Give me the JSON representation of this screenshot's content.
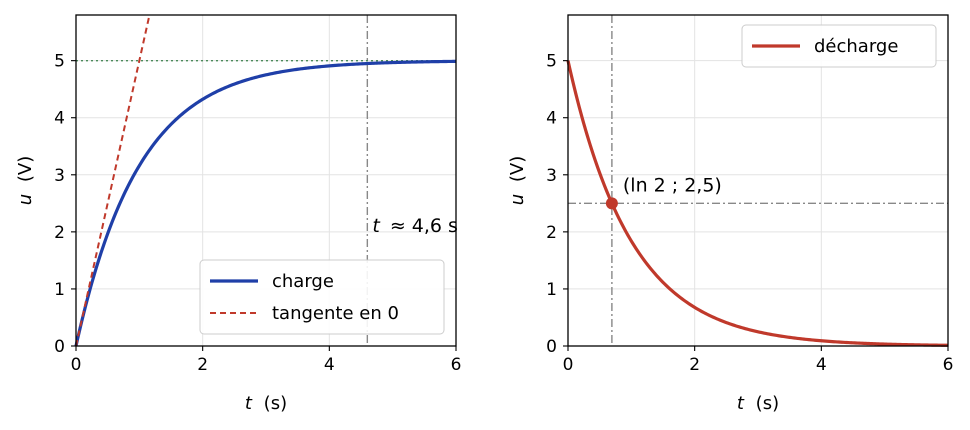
{
  "chart_data": [
    {
      "type": "line",
      "panel": "left",
      "xlabel_var": "t",
      "xlabel_unit": "(s)",
      "ylabel_var": "u",
      "ylabel_unit": "(V)",
      "xlim": [
        0,
        6
      ],
      "ylim": [
        0,
        5.8
      ],
      "xticks": [
        "0",
        "2",
        "4",
        "6"
      ],
      "yticks": [
        "0",
        "1",
        "2",
        "3",
        "4",
        "5"
      ],
      "grid": true,
      "legend_position": "lower-right",
      "series": [
        {
          "name": "charge",
          "kind": "exp_charge",
          "E": 5,
          "tau": 1,
          "color": "#1f3fa8",
          "style": "solid",
          "x": [
            0,
            0.5,
            1,
            1.5,
            2,
            3,
            4,
            5,
            6
          ],
          "y": [
            0,
            1.97,
            3.16,
            3.88,
            4.32,
            4.75,
            4.91,
            4.97,
            4.99
          ]
        },
        {
          "name": "tangente en 0",
          "kind": "linear",
          "slope": 5,
          "color": "#c0392b",
          "style": "dashed",
          "x": [
            0,
            1.16
          ],
          "y": [
            0,
            5.8
          ]
        }
      ],
      "reference_lines": [
        {
          "orientation": "horizontal",
          "value": 5,
          "color": "#4a8a5a",
          "style": "dotted"
        },
        {
          "orientation": "vertical",
          "value": 4.6,
          "color": "#888888",
          "style": "dashdot"
        }
      ],
      "annotation": {
        "text": "t ≈ 4,6 s",
        "italic_part": "t",
        "rest": "≈ 4,6 s",
        "x": 4.6,
        "y": 2.1
      }
    },
    {
      "type": "line",
      "panel": "right",
      "xlabel_var": "t",
      "xlabel_unit": "(s)",
      "ylabel_var": "u",
      "ylabel_unit": "(V)",
      "xlim": [
        0,
        6
      ],
      "ylim": [
        0,
        5.8
      ],
      "xticks": [
        "0",
        "2",
        "4",
        "6"
      ],
      "yticks": [
        "0",
        "1",
        "2",
        "3",
        "4",
        "5"
      ],
      "grid": true,
      "legend_position": "upper-right",
      "series": [
        {
          "name": "décharge",
          "kind": "exp_discharge",
          "E": 5,
          "tau": 1,
          "color": "#c0392b",
          "style": "solid",
          "x": [
            0,
            0.693,
            1,
            2,
            3,
            4,
            5,
            6
          ],
          "y": [
            5,
            2.5,
            1.84,
            0.68,
            0.25,
            0.09,
            0.03,
            0.01
          ]
        }
      ],
      "reference_lines": [
        {
          "orientation": "horizontal",
          "value": 2.5,
          "color": "#888888",
          "style": "dashdot"
        },
        {
          "orientation": "vertical",
          "value": 0.693,
          "color": "#888888",
          "style": "dashdot"
        }
      ],
      "marker": {
        "x": 0.693,
        "y": 2.5,
        "color": "#c0392b"
      },
      "annotation": {
        "text": "(ln 2 ; 2,5)",
        "x": 0.693,
        "y": 2.5
      }
    }
  ]
}
